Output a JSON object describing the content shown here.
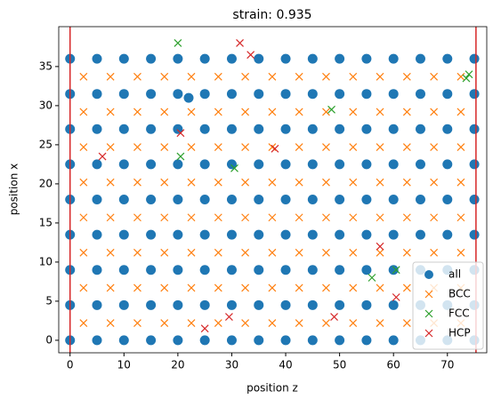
{
  "chart_data": {
    "type": "scatter",
    "title": "strain: 0.935",
    "xlabel": "position z",
    "ylabel": "position x",
    "xlim": [
      -2.1,
      77.3
    ],
    "ylim": [
      -1.6,
      40.1
    ],
    "xticks": [
      0,
      10,
      20,
      30,
      40,
      50,
      60,
      70
    ],
    "yticks": [
      0,
      5,
      10,
      15,
      20,
      25,
      30,
      35
    ],
    "vlines": [
      0,
      75.3
    ],
    "vline_color": "#d62728",
    "legend": "lower right",
    "series": [
      {
        "name": "all",
        "color": "#1f77b4",
        "marker": "circle",
        "x": [
          0,
          5,
          10,
          15,
          20,
          25,
          30,
          35,
          40,
          45,
          50,
          55,
          60,
          65,
          70,
          75,
          0,
          5,
          10,
          15,
          20,
          25,
          30,
          35,
          40,
          45,
          50,
          55,
          60,
          65,
          70,
          75,
          0,
          5,
          10,
          15,
          20,
          25,
          30,
          35,
          40,
          45,
          50,
          55,
          60,
          65,
          70,
          75,
          0,
          5,
          10,
          15,
          20,
          25,
          30,
          35,
          40,
          45,
          50,
          55,
          60,
          65,
          70,
          75,
          0,
          5,
          10,
          15,
          20,
          25,
          30,
          35,
          40,
          45,
          50,
          55,
          60,
          65,
          70,
          75,
          0,
          5,
          10,
          15,
          20,
          25,
          30,
          35,
          40,
          45,
          50,
          55,
          60,
          65,
          70,
          75,
          0,
          5,
          10,
          15,
          20,
          25,
          30,
          35,
          40,
          45,
          50,
          55,
          60,
          65,
          70,
          75,
          0,
          5,
          10,
          15,
          20,
          25,
          30,
          35,
          40,
          45,
          50,
          55,
          60,
          65,
          70,
          75,
          0,
          5,
          10,
          15,
          20,
          25,
          30,
          35,
          40,
          45,
          50,
          55,
          60,
          65,
          70,
          75,
          22
        ],
        "values": [
          0,
          0,
          0,
          0,
          0,
          0,
          0,
          0,
          0,
          0,
          0,
          0,
          0,
          0,
          0,
          0,
          4.5,
          4.5,
          4.5,
          4.5,
          4.5,
          4.5,
          4.5,
          4.5,
          4.5,
          4.5,
          4.5,
          4.5,
          4.5,
          4.5,
          4.5,
          4.5,
          9,
          9,
          9,
          9,
          9,
          9,
          9,
          9,
          9,
          9,
          9,
          9,
          9,
          9,
          9,
          9,
          13.5,
          13.5,
          13.5,
          13.5,
          13.5,
          13.5,
          13.5,
          13.5,
          13.5,
          13.5,
          13.5,
          13.5,
          13.5,
          13.5,
          13.5,
          13.5,
          18,
          18,
          18,
          18,
          18,
          18,
          18,
          18,
          18,
          18,
          18,
          18,
          18,
          18,
          18,
          18,
          22.5,
          22.5,
          22.5,
          22.5,
          22.5,
          22.5,
          22.5,
          22.5,
          22.5,
          22.5,
          22.5,
          22.5,
          22.5,
          22.5,
          22.5,
          22.5,
          27,
          27,
          27,
          27,
          27,
          27,
          27,
          27,
          27,
          27,
          27,
          27,
          27,
          27,
          27,
          27,
          31.5,
          31.5,
          31.5,
          31.5,
          31.5,
          31.5,
          31.5,
          31.5,
          31.5,
          31.5,
          31.5,
          31.5,
          31.5,
          31.5,
          31.5,
          31.5,
          36,
          36,
          36,
          36,
          36,
          36,
          36,
          36,
          36,
          36,
          36,
          36,
          36,
          36,
          36,
          36,
          31
        ]
      },
      {
        "name": "BCC",
        "color": "#ff7f0e",
        "marker": "x",
        "x": [
          2.5,
          7.5,
          12.5,
          17.5,
          22.5,
          27.5,
          32.5,
          37.5,
          42.5,
          47.5,
          52.5,
          57.5,
          62.5,
          67.5,
          72.5,
          2.5,
          7.5,
          12.5,
          17.5,
          22.5,
          27.5,
          32.5,
          37.5,
          42.5,
          47.5,
          52.5,
          57.5,
          62.5,
          67.5,
          72.5,
          2.5,
          7.5,
          12.5,
          17.5,
          22.5,
          27.5,
          32.5,
          37.5,
          42.5,
          47.5,
          52.5,
          57.5,
          62.5,
          67.5,
          72.5,
          2.5,
          7.5,
          12.5,
          17.5,
          22.5,
          27.5,
          32.5,
          37.5,
          42.5,
          47.5,
          52.5,
          57.5,
          62.5,
          67.5,
          72.5,
          2.5,
          7.5,
          12.5,
          17.5,
          22.5,
          27.5,
          32.5,
          37.5,
          42.5,
          47.5,
          52.5,
          57.5,
          62.5,
          67.5,
          72.5,
          2.5,
          7.5,
          12.5,
          17.5,
          22.5,
          27.5,
          32.5,
          37.5,
          42.5,
          47.5,
          52.5,
          57.5,
          62.5,
          67.5,
          72.5,
          2.5,
          7.5,
          12.5,
          17.5,
          22.5,
          27.5,
          32.5,
          37.5,
          42.5,
          47.5,
          52.5,
          57.5,
          62.5,
          67.5,
          72.5,
          2.5,
          7.5,
          12.5,
          17.5,
          22.5,
          27.5,
          32.5,
          37.5,
          42.5,
          47.5,
          52.5,
          57.5,
          62.5,
          67.5,
          72.5
        ],
        "values": [
          2.2,
          2.2,
          2.2,
          2.2,
          2.2,
          2.2,
          2.2,
          2.2,
          2.2,
          2.2,
          2.2,
          2.2,
          2.2,
          2.2,
          2.2,
          6.7,
          6.7,
          6.7,
          6.7,
          6.7,
          6.7,
          6.7,
          6.7,
          6.7,
          6.7,
          6.7,
          6.7,
          6.7,
          6.7,
          6.7,
          11.2,
          11.2,
          11.2,
          11.2,
          11.2,
          11.2,
          11.2,
          11.2,
          11.2,
          11.2,
          11.2,
          11.2,
          11.2,
          11.2,
          11.2,
          15.7,
          15.7,
          15.7,
          15.7,
          15.7,
          15.7,
          15.7,
          15.7,
          15.7,
          15.7,
          15.7,
          15.7,
          15.7,
          15.7,
          15.7,
          20.2,
          20.2,
          20.2,
          20.2,
          20.2,
          20.2,
          20.2,
          20.2,
          20.2,
          20.2,
          20.2,
          20.2,
          20.2,
          20.2,
          20.2,
          24.7,
          24.7,
          24.7,
          24.7,
          24.7,
          24.7,
          24.7,
          24.7,
          24.7,
          24.7,
          24.7,
          24.7,
          24.7,
          24.7,
          24.7,
          29.2,
          29.2,
          29.2,
          29.2,
          29.2,
          29.2,
          29.2,
          29.2,
          29.2,
          29.2,
          29.2,
          29.2,
          29.2,
          29.2,
          29.2,
          33.7,
          33.7,
          33.7,
          33.7,
          33.7,
          33.7,
          33.7,
          33.7,
          33.7,
          33.7,
          33.7,
          33.7,
          33.7,
          33.7,
          33.7
        ]
      },
      {
        "name": "FCC",
        "color": "#2ca02c",
        "marker": "x",
        "x": [
          20.5,
          30.5,
          48.5,
          60.5,
          56,
          20,
          73.5,
          74
        ],
        "values": [
          23.5,
          22,
          29.5,
          9,
          8,
          38,
          33.5,
          34
        ]
      },
      {
        "name": "HCP",
        "color": "#d62728",
        "marker": "x",
        "x": [
          6,
          20.5,
          25,
          29.5,
          31.5,
          33.5,
          57.5,
          60.5,
          38,
          49
        ],
        "values": [
          23.5,
          26.5,
          1.5,
          3,
          38,
          36.5,
          12,
          5.5,
          24.5,
          3
        ]
      }
    ]
  }
}
